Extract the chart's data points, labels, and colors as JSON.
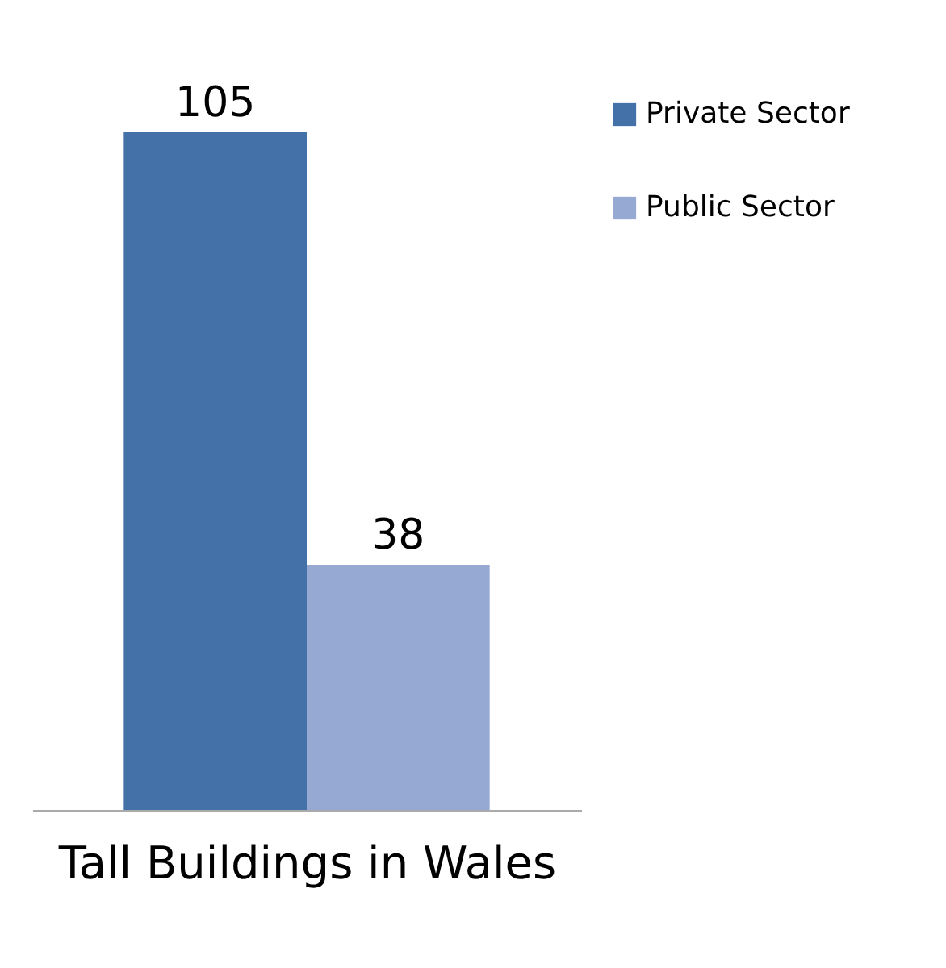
{
  "chart_data": {
    "type": "bar",
    "xlabel": "Tall Buildings in Wales",
    "categories": [
      null
    ],
    "series": [
      {
        "name": "Private Sector",
        "color": "#4472a8",
        "values": [
          105
        ]
      },
      {
        "name": "Public Sector",
        "color": "#95a9d2",
        "values": [
          38
        ]
      }
    ],
    "data_labels": true,
    "legend": "right"
  }
}
